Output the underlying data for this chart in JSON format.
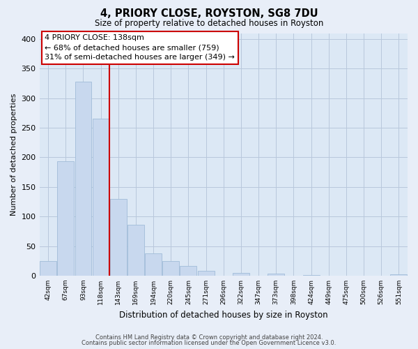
{
  "title": "4, PRIORY CLOSE, ROYSTON, SG8 7DU",
  "subtitle": "Size of property relative to detached houses in Royston",
  "xlabel": "Distribution of detached houses by size in Royston",
  "ylabel": "Number of detached properties",
  "bar_labels": [
    "42sqm",
    "67sqm",
    "93sqm",
    "118sqm",
    "143sqm",
    "169sqm",
    "194sqm",
    "220sqm",
    "245sqm",
    "271sqm",
    "296sqm",
    "322sqm",
    "347sqm",
    "373sqm",
    "398sqm",
    "424sqm",
    "449sqm",
    "475sqm",
    "500sqm",
    "526sqm",
    "551sqm"
  ],
  "bar_values": [
    25,
    193,
    328,
    265,
    130,
    86,
    38,
    25,
    17,
    8,
    0,
    5,
    0,
    3,
    0,
    1,
    0,
    0,
    0,
    0,
    2
  ],
  "bar_color": "#c8d8ee",
  "bar_edge_color": "#a0bcd8",
  "vline_x_idx": 4,
  "vline_color": "#cc0000",
  "annotation_title": "4 PRIORY CLOSE: 138sqm",
  "annotation_line1": "← 68% of detached houses are smaller (759)",
  "annotation_line2": "31% of semi-detached houses are larger (349) →",
  "annotation_box_color": "#cc0000",
  "ylim": [
    0,
    410
  ],
  "yticks": [
    0,
    50,
    100,
    150,
    200,
    250,
    300,
    350,
    400
  ],
  "footer_line1": "Contains HM Land Registry data © Crown copyright and database right 2024.",
  "footer_line2": "Contains public sector information licensed under the Open Government Licence v3.0.",
  "bg_color": "#e8eef8",
  "plot_bg_color": "#dce8f5",
  "grid_color": "#b8c8dc"
}
